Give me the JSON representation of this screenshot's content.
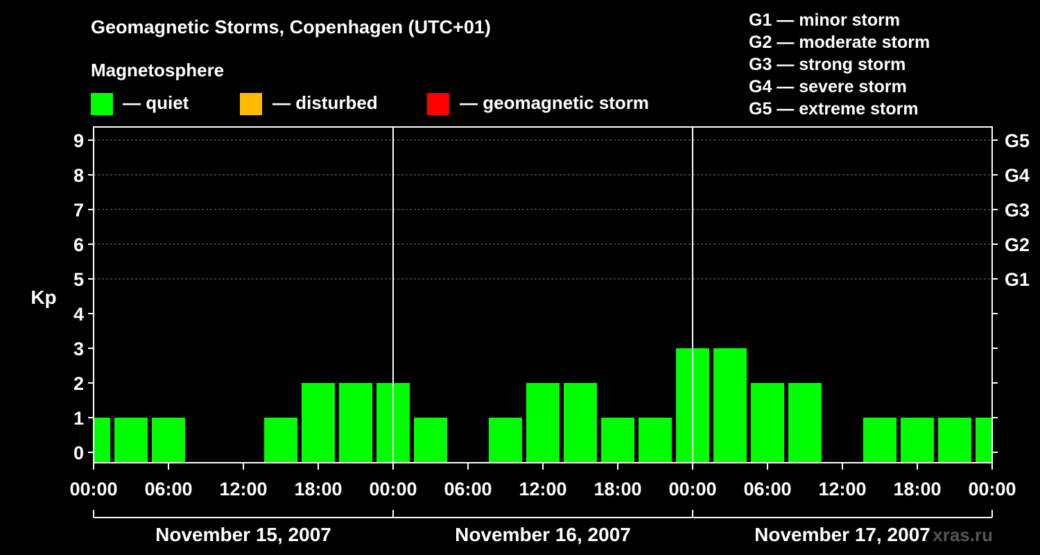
{
  "chart_data": {
    "type": "bar",
    "title": "Geomagnetic Storms, Copenhagen (UTC+01)",
    "legend": {
      "heading": "Magnetosphere",
      "items": [
        {
          "label": "— quiet",
          "color": "#00ff00"
        },
        {
          "label": "— disturbed",
          "color": "#ffbb00"
        },
        {
          "label": "— geomagnetic storm",
          "color": "#ff0000"
        }
      ]
    },
    "storm_scale": [
      "G1 — minor storm",
      "G2 — moderate storm",
      "G3 — strong storm",
      "G4 — severe storm",
      "G5 — extreme storm"
    ],
    "ylabel": "Kp",
    "ylim": [
      0,
      9
    ],
    "y_ticks": [
      "0",
      "1",
      "2",
      "3",
      "4",
      "5",
      "6",
      "7",
      "8",
      "9"
    ],
    "right_ticks": [
      {
        "kp": 5,
        "label": "G1"
      },
      {
        "kp": 6,
        "label": "G2"
      },
      {
        "kp": 7,
        "label": "G3"
      },
      {
        "kp": 8,
        "label": "G4"
      },
      {
        "kp": 9,
        "label": "G5"
      }
    ],
    "x_ticks": [
      "00:00",
      "06:00",
      "12:00",
      "18:00",
      "00:00",
      "06:00",
      "12:00",
      "18:00",
      "00:00",
      "06:00",
      "12:00",
      "18:00",
      "00:00"
    ],
    "days": [
      "November 15, 2007",
      "November 16, 2007",
      "November 17, 2007"
    ],
    "period_hours": 3,
    "values": [
      1,
      1,
      1,
      0,
      0,
      1,
      2,
      2,
      2,
      1,
      0,
      1,
      2,
      2,
      1,
      1,
      3,
      3,
      2,
      2,
      0,
      1,
      1,
      1,
      1
    ],
    "bar_color": "#00ff00"
  },
  "watermark": "xras.ru"
}
